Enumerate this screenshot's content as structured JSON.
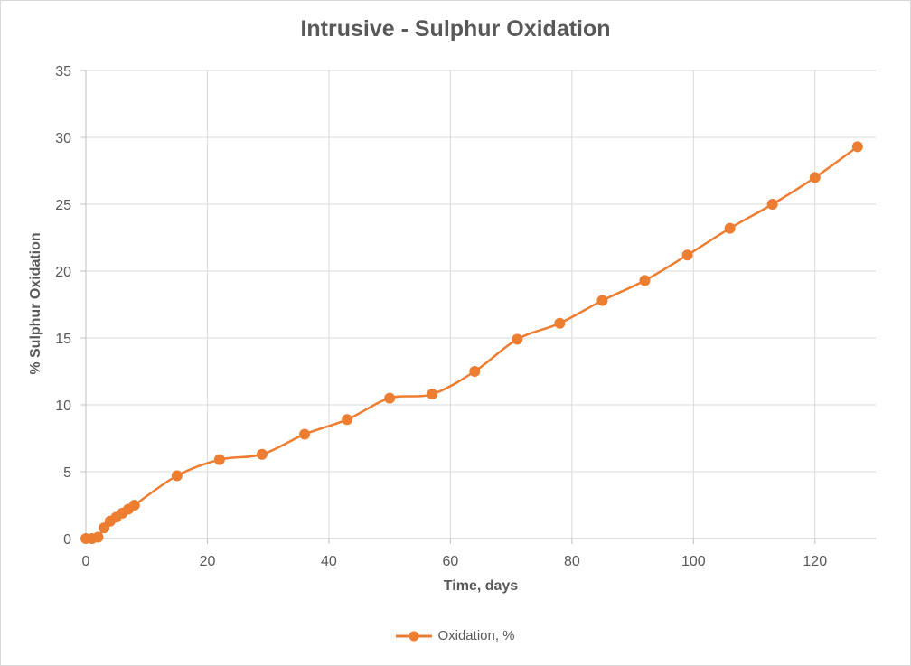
{
  "chart_data": {
    "type": "line",
    "title": "Intrusive - Sulphur Oxidation",
    "xlabel": "Time, days",
    "ylabel": "% Sulphur Oxidation",
    "xlim": [
      0,
      130
    ],
    "ylim": [
      0,
      35
    ],
    "xticks": [
      0,
      20,
      40,
      60,
      80,
      100,
      120
    ],
    "yticks": [
      0,
      5,
      10,
      15,
      20,
      25,
      30,
      35
    ],
    "grid": true,
    "legend_position": "bottom",
    "series": [
      {
        "name": "Oxidation, %",
        "color": "#ed7d31",
        "smooth": true,
        "x": [
          0,
          1,
          2,
          3,
          4,
          5,
          6,
          7,
          8,
          15,
          22,
          29,
          36,
          43,
          50,
          57,
          64,
          71,
          78,
          85,
          92,
          99,
          106,
          113,
          120,
          127
        ],
        "y": [
          0,
          0,
          0.1,
          0.8,
          1.3,
          1.6,
          1.9,
          2.2,
          2.5,
          4.7,
          5.9,
          6.3,
          7.8,
          8.9,
          10.5,
          10.8,
          12.5,
          14.9,
          16.1,
          17.8,
          19.3,
          21.2,
          23.2,
          25.0,
          27.0,
          29.3
        ]
      }
    ]
  }
}
